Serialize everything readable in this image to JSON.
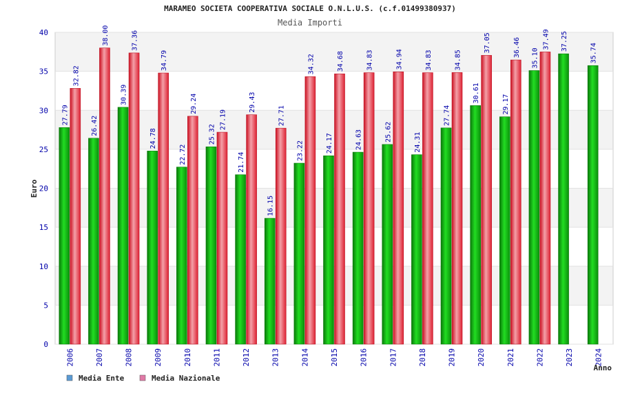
{
  "chart_data": {
    "type": "bar",
    "title": "MARAMEO SOCIETA COOPERATIVA SOCIALE O.N.L.U.S. (c.f.01499380937)",
    "subtitle": "Media Importi",
    "xlabel": "Anno",
    "ylabel": "Euro",
    "ylim": [
      0,
      40
    ],
    "yticks": [
      0,
      5,
      10,
      15,
      20,
      25,
      30,
      35,
      40
    ],
    "categories": [
      "2006",
      "2007",
      "2008",
      "2009",
      "2010",
      "2011",
      "2012",
      "2013",
      "2014",
      "2015",
      "2016",
      "2017",
      "2018",
      "2019",
      "2020",
      "2021",
      "2022",
      "2023",
      "2024"
    ],
    "series": [
      {
        "name": "Media Ente",
        "legend_color": "#5b9bd5",
        "bar_color": "#11bb11",
        "values": [
          27.79,
          26.42,
          30.39,
          24.78,
          22.72,
          25.32,
          21.74,
          16.15,
          23.22,
          24.17,
          24.63,
          25.62,
          24.31,
          27.74,
          30.61,
          29.17,
          35.1,
          37.25,
          35.74
        ],
        "labels": [
          "27.79",
          "26.42",
          "30.39",
          "24.78",
          "22.72",
          "25.32",
          "21.74",
          "16.15",
          "23.22",
          "24.17",
          "24.63",
          "25.62",
          "24.31",
          "27.74",
          "30.61",
          "29.17",
          "35.10",
          "37.25",
          "35.74"
        ]
      },
      {
        "name": "Media Nazionale",
        "legend_color": "#e07aa6",
        "bar_color": "#ee2233",
        "values": [
          32.82,
          38.0,
          37.36,
          34.79,
          29.24,
          27.19,
          29.43,
          27.71,
          34.32,
          34.68,
          34.83,
          34.94,
          34.83,
          34.85,
          37.05,
          36.46,
          37.49,
          null,
          null
        ],
        "labels": [
          "32.82",
          "38.00",
          "37.36",
          "34.79",
          "29.24",
          "27.19",
          "29.43",
          "27.71",
          "34.32",
          "34.68",
          "34.83",
          "34.94",
          "34.83",
          "34.85",
          "37.05",
          "36.46",
          "37.49",
          "",
          ""
        ]
      }
    ],
    "grid": true,
    "legend": "bottom-left"
  }
}
